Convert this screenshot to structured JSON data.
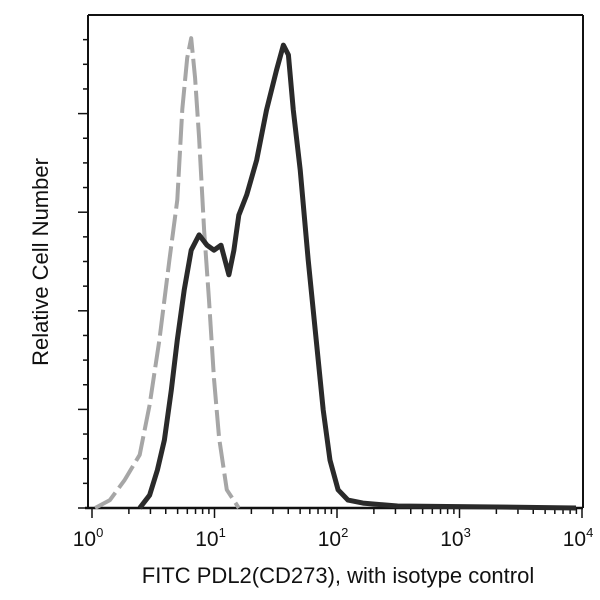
{
  "chart_data": {
    "type": "line",
    "title": "",
    "xlabel": "FITC PDL2(CD273), with isotype control",
    "ylabel": "Relative Cell Number",
    "xscale": "log",
    "xlim": [
      1,
      10000
    ],
    "ylim": [
      0,
      100
    ],
    "x_tick_labels": [
      {
        "base": "10",
        "exp": "0"
      },
      {
        "base": "10",
        "exp": "1"
      },
      {
        "base": "10",
        "exp": "2"
      },
      {
        "base": "10",
        "exp": "3"
      },
      {
        "base": "10",
        "exp": "4"
      }
    ],
    "y_tick_labels_shown": false,
    "grid": false,
    "legend": "none",
    "series": [
      {
        "role": "isotype control",
        "color": "#a6a6a6",
        "style": "dashed",
        "x": [
          1.06,
          1.4,
          1.85,
          2.45,
          2.95,
          3.55,
          4.28,
          4.97,
          5.46,
          5.99,
          6.45,
          6.95,
          7.49,
          8.22,
          9.02,
          9.91,
          10.9,
          12.6,
          15.8
        ],
        "y": [
          0,
          1.6,
          5.7,
          10.8,
          20.9,
          34.1,
          50.3,
          62.5,
          80.9,
          91.3,
          95.3,
          87.2,
          75.1,
          56.4,
          42.2,
          26.2,
          14.2,
          3.7,
          0
        ]
      },
      {
        "role": "PDL2 (CD273) stained",
        "color": "#2a2a2a",
        "style": "solid",
        "x": [
          2.45,
          2.95,
          3.42,
          3.9,
          4.44,
          4.97,
          5.66,
          6.45,
          7.49,
          8.69,
          9.91,
          11.3,
          13.1,
          14.4,
          15.8,
          18.3,
          22.1,
          26.6,
          32.1,
          36.5,
          40.1,
          44.0,
          50.1,
          58.2,
          67.6,
          77.1,
          87.7,
          102,
          123,
          163,
          312,
          2010,
          8940
        ],
        "y": [
          0,
          2.6,
          7.7,
          13.8,
          23.9,
          34.1,
          44.2,
          52.3,
          55.4,
          53.3,
          52.3,
          53.3,
          47.3,
          52.3,
          59.4,
          63.5,
          70.6,
          80.7,
          88.8,
          93.9,
          91.9,
          80.7,
          68.6,
          50.3,
          34.1,
          19.9,
          9.7,
          3.7,
          1.6,
          1.0,
          0.4,
          0.2,
          0
        ]
      }
    ]
  }
}
